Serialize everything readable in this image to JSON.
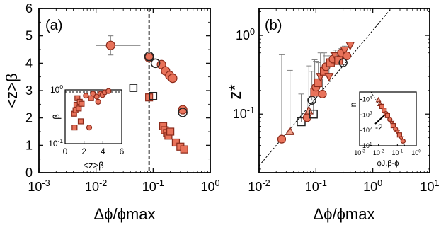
{
  "colors": {
    "marker_fill": "#e8725a",
    "marker_fill_light": "#f0a08a",
    "marker_edge": "#8a2a1a",
    "open_edge": "#222222",
    "errorbar": "#777777",
    "axis": "#000000"
  },
  "chart_data": [
    {
      "id": "a",
      "type": "scatter",
      "panel_label": "(a)",
      "xlabel": "Δϕ/ϕmax",
      "ylabel": "<z>β",
      "xscale": "log",
      "xlim": [
        0.001,
        1
      ],
      "ylim": [
        0,
        6
      ],
      "xticks": [
        "10-3",
        "10-2",
        "10-1",
        "100"
      ],
      "yticks": [
        "0",
        "1",
        "2",
        "3",
        "4",
        "5",
        "6"
      ],
      "vline_x": 0.085,
      "series": [
        {
          "marker": "circle-filled",
          "points": [
            {
              "x": 0.018,
              "y": 4.65,
              "xerr": [
                0.008,
                0.042
              ],
              "yerr": 0.35
            },
            {
              "x": 0.085,
              "y": 4.2
            },
            {
              "x": 0.14,
              "y": 3.95
            },
            {
              "x": 0.165,
              "y": 3.72
            },
            {
              "x": 0.195,
              "y": 3.55
            },
            {
              "x": 0.22,
              "y": 3.45
            },
            {
              "x": 0.33,
              "y": 2.3
            }
          ]
        },
        {
          "marker": "circle-open",
          "points": [
            {
              "x": 0.085,
              "y": 4.25
            },
            {
              "x": 0.11,
              "y": 4.0
            },
            {
              "x": 0.33,
              "y": 2.2
            }
          ]
        },
        {
          "marker": "square-filled",
          "points": [
            {
              "x": 0.085,
              "y": 2.75
            },
            {
              "x": 0.15,
              "y": 1.7
            },
            {
              "x": 0.16,
              "y": 1.55
            },
            {
              "x": 0.175,
              "y": 1.45
            },
            {
              "x": 0.185,
              "y": 1.35
            },
            {
              "x": 0.2,
              "y": 1.5
            },
            {
              "x": 0.25,
              "y": 1.1
            },
            {
              "x": 0.3,
              "y": 0.95
            },
            {
              "x": 0.35,
              "y": 0.85
            }
          ]
        },
        {
          "marker": "square-open",
          "points": [
            {
              "x": 0.045,
              "y": 3.1
            },
            {
              "x": 0.1,
              "y": 2.8
            }
          ]
        }
      ],
      "inset": {
        "xlabel": "<z>β",
        "ylabel": "β",
        "xscale": "linear",
        "yscale": "log",
        "xlim": [
          0,
          6
        ],
        "ylim": [
          0.1,
          1
        ],
        "xticks": [
          "0",
          "2",
          "4",
          "6"
        ],
        "yticks": [
          "10-1",
          "100"
        ],
        "points": [
          {
            "x": 0.95,
            "y": 0.36,
            "marker": "square"
          },
          {
            "x": 1.0,
            "y": 0.2,
            "marker": "square"
          },
          {
            "x": 1.1,
            "y": 0.42,
            "marker": "square"
          },
          {
            "x": 1.2,
            "y": 0.53,
            "marker": "square"
          },
          {
            "x": 1.3,
            "y": 0.7,
            "marker": "square"
          },
          {
            "x": 1.45,
            "y": 0.45,
            "marker": "square"
          },
          {
            "x": 1.55,
            "y": 0.6,
            "marker": "square"
          },
          {
            "x": 1.65,
            "y": 0.26,
            "marker": "square"
          },
          {
            "x": 1.75,
            "y": 0.55,
            "marker": "square"
          },
          {
            "x": 2.2,
            "y": 0.78,
            "marker": "circle"
          },
          {
            "x": 2.55,
            "y": 0.2,
            "marker": "circle"
          },
          {
            "x": 2.75,
            "y": 0.7,
            "marker": "square"
          },
          {
            "x": 2.95,
            "y": 0.85,
            "marker": "circle"
          },
          {
            "x": 3.35,
            "y": 0.75,
            "marker": "circle"
          },
          {
            "x": 3.5,
            "y": 0.6,
            "marker": "circle"
          },
          {
            "x": 3.75,
            "y": 0.85,
            "marker": "circle"
          },
          {
            "x": 3.95,
            "y": 0.8,
            "marker": "circle"
          },
          {
            "x": 4.2,
            "y": 0.9,
            "marker": "circle"
          },
          {
            "x": 4.6,
            "y": 0.95,
            "marker": "circle"
          }
        ]
      }
    },
    {
      "id": "b",
      "type": "scatter",
      "panel_label": "(b)",
      "xlabel": "Δϕ/ϕmax",
      "ylabel": "z*",
      "xscale": "log",
      "yscale": "log",
      "xlim": [
        0.01,
        10
      ],
      "ylim": [
        0.018,
        2.2
      ],
      "xticks": [
        "10-2",
        "10-1",
        "100",
        "101"
      ],
      "yticks": [
        "10-1",
        "100"
      ],
      "guide_line": [
        [
          0.01,
          0.022
        ],
        [
          2.1,
          2.2
        ]
      ],
      "points": [
        {
          "x": 0.025,
          "y": 0.048,
          "marker": "circle",
          "yerr_up": 0.52
        },
        {
          "x": 0.035,
          "y": 0.06,
          "marker": "triangle-up",
          "yerr_up": 0.3
        },
        {
          "x": 0.055,
          "y": 0.08,
          "marker": "square-open",
          "yerr_up": 0.1
        },
        {
          "x": 0.07,
          "y": 0.09,
          "marker": "circle",
          "yerr_up": 0.07
        },
        {
          "x": 0.075,
          "y": 0.11,
          "marker": "triangle-up",
          "yerr_up": 0.3
        },
        {
          "x": 0.09,
          "y": 0.1,
          "marker": "square-open",
          "yerr_up": 0.05
        },
        {
          "x": 0.085,
          "y": 0.15,
          "marker": "circle-open",
          "yerr_up": 0.2
        },
        {
          "x": 0.095,
          "y": 0.19,
          "marker": "square",
          "yerr_up": 0.3
        },
        {
          "x": 0.1,
          "y": 0.22,
          "marker": "circle",
          "yerr_up": 0.25
        },
        {
          "x": 0.11,
          "y": 0.25,
          "marker": "square",
          "yerr_up": 0.2
        },
        {
          "x": 0.12,
          "y": 0.3,
          "marker": "triangle-down",
          "yerr_up": 0.3
        },
        {
          "x": 0.13,
          "y": 0.18,
          "marker": "circle",
          "yerr_up": 0.1
        },
        {
          "x": 0.14,
          "y": 0.35,
          "marker": "square",
          "yerr_up": 0.25
        },
        {
          "x": 0.15,
          "y": 0.4,
          "marker": "circle",
          "yerr_up": 0.15
        },
        {
          "x": 0.17,
          "y": 0.3,
          "marker": "triangle-down",
          "yerr_up": 0.2
        },
        {
          "x": 0.18,
          "y": 0.45,
          "marker": "square",
          "yerr_up": 0.1
        },
        {
          "x": 0.2,
          "y": 0.5,
          "marker": "circle",
          "yerr_up": 0.1
        },
        {
          "x": 0.22,
          "y": 0.55,
          "marker": "triangle-down",
          "yerr_up": 0.1
        },
        {
          "x": 0.25,
          "y": 0.48,
          "marker": "square",
          "yerr_up": 0.08
        },
        {
          "x": 0.28,
          "y": 0.6,
          "marker": "circle",
          "yerr_up": 0.08
        },
        {
          "x": 0.32,
          "y": 0.65,
          "marker": "triangle-down",
          "yerr_up": 0.08
        },
        {
          "x": 0.35,
          "y": 0.55,
          "marker": "circle",
          "yerr_up": 0.05
        },
        {
          "x": 0.4,
          "y": 0.75,
          "marker": "triangle-down",
          "yerr_up": 0.05
        },
        {
          "x": 0.3,
          "y": 0.45,
          "marker": "circle-open",
          "yerr_up": 0.05
        }
      ],
      "inset": {
        "ylabel": "n",
        "xlabel": "ϕJ,β-ϕ",
        "xscale": "log",
        "yscale": "log",
        "xlim": [
          0.001,
          1
        ],
        "ylim": [
          10,
          30000
        ],
        "xticks": [
          "10-3",
          "10-2",
          "10-1",
          "100"
        ],
        "yticks": [
          "101",
          "102",
          "103",
          "104"
        ],
        "slope_label": "-2",
        "points": [
          {
            "x": 0.01,
            "y": 9000,
            "marker": "triangle-up"
          },
          {
            "x": 0.012,
            "y": 5000,
            "marker": "triangle-up"
          },
          {
            "x": 0.015,
            "y": 3500,
            "marker": "square"
          },
          {
            "x": 0.02,
            "y": 2000,
            "marker": "square"
          },
          {
            "x": 0.025,
            "y": 1200,
            "marker": "circle"
          },
          {
            "x": 0.03,
            "y": 900,
            "marker": "square"
          },
          {
            "x": 0.04,
            "y": 500,
            "marker": "circle"
          },
          {
            "x": 0.05,
            "y": 300,
            "marker": "triangle-down"
          },
          {
            "x": 0.06,
            "y": 200,
            "marker": "square"
          },
          {
            "x": 0.08,
            "y": 120,
            "marker": "circle"
          },
          {
            "x": 0.1,
            "y": 80,
            "marker": "triangle-down"
          },
          {
            "x": 0.13,
            "y": 50,
            "marker": "square"
          },
          {
            "x": 0.16,
            "y": 30,
            "marker": "triangle-down"
          },
          {
            "x": 0.2,
            "y": 20,
            "marker": "circle"
          }
        ]
      }
    }
  ]
}
